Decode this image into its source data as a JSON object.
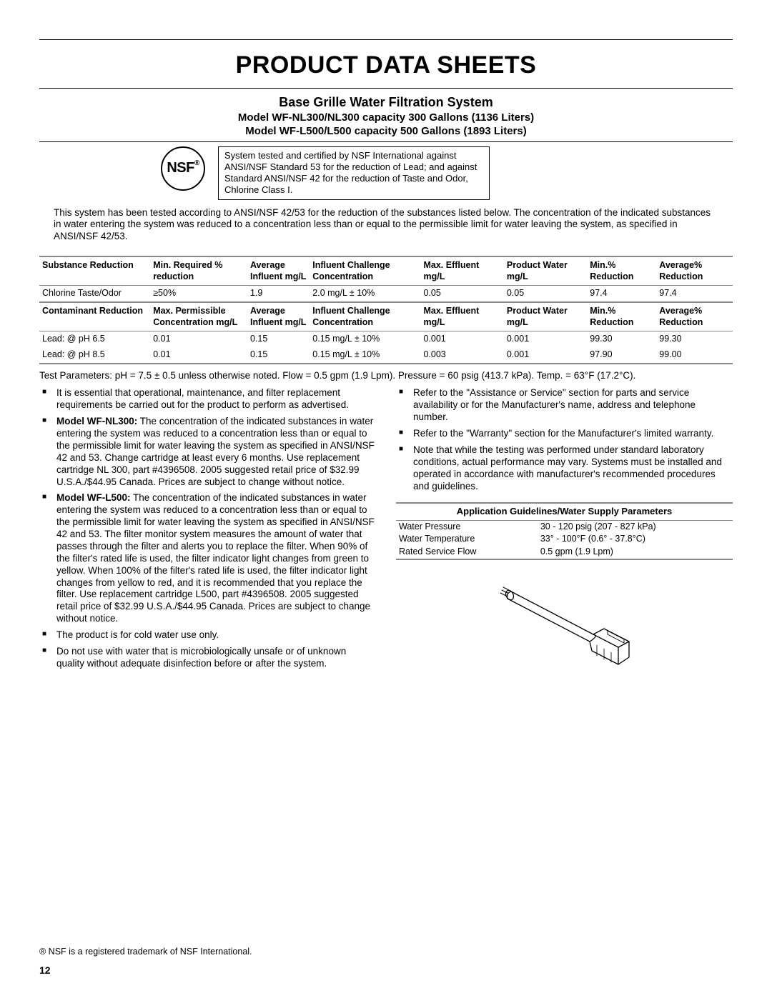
{
  "title": "PRODUCT DATA SHEETS",
  "subtitle": "Base Grille Water Filtration System",
  "model_lines": [
    "Model WF-NL300/NL300 capacity 300 Gallons (1136 Liters)",
    "Model WF-L500/L500 capacity 500 Gallons (1893 Liters)"
  ],
  "nsf_label": "NSF",
  "cert_text": "System tested and certified by NSF International against ANSI/NSF Standard 53 for the reduction of Lead; and against Standard ANSI/NSF 42 for the reduction of Taste and Odor, Chlorine Class I.",
  "intro": "This system has been tested according to ANSI/NSF 42/53 for the reduction of the substances listed below. The concentration of the indicated substances in water entering the system was reduced to a concentration less than or equal to the permissible limit for water leaving the system, as specified in ANSI/NSF 42/53.",
  "table1": {
    "headers": [
      "Substance Reduction",
      "Min. Required % reduction",
      "Average Influent mg/L",
      "Influent Challenge Concentration",
      "Max. Effluent mg/L",
      "Product Water mg/L",
      "Min.% Reduction",
      "Average% Reduction"
    ],
    "rows": [
      [
        "Chlorine Taste/Odor",
        "≥50%",
        "1.9",
        "2.0 mg/L ± 10%",
        "0.05",
        "0.05",
        "97.4",
        "97.4"
      ]
    ]
  },
  "table2": {
    "headers": [
      "Contaminant Reduction",
      "Max. Permissible Concentration mg/L",
      "Average Influent mg/L",
      "Influent Challenge Concentration",
      "Max. Effluent mg/L",
      "Product Water mg/L",
      "Min.% Reduction",
      "Average% Reduction"
    ],
    "rows": [
      [
        "Lead: @ pH 6.5",
        "0.01",
        "0.15",
        "0.15 mg/L ± 10%",
        "0.001",
        "0.001",
        "99.30",
        "99.30"
      ],
      [
        "Lead: @ pH 8.5",
        "0.01",
        "0.15",
        "0.15 mg/L ± 10%",
        "0.003",
        "0.001",
        "97.90",
        "99.00"
      ]
    ]
  },
  "col_widths": [
    "16%",
    "14%",
    "9%",
    "16%",
    "12%",
    "12%",
    "10%",
    "11%"
  ],
  "test_params": "Test Parameters: pH = 7.5 ± 0.5 unless otherwise noted. Flow = 0.5 gpm (1.9 Lpm). Pressure = 60 psig (413.7 kPa). Temp. = 63°F (17.2°C).",
  "left_notes": [
    {
      "bold": "",
      "text": "It is essential that operational, maintenance, and filter replacement requirements be carried out for the product to perform as advertised."
    },
    {
      "bold": "Model WF-NL300:",
      "text": " The concentration of the indicated substances in water entering the system was reduced to a concentration less than or equal to the permissible limit for water leaving the system as specified in ANSI/NSF 42 and 53. Change cartridge at least every 6 months. Use replacement cartridge NL 300, part #4396508. 2005 suggested retail price of $32.99 U.S.A./$44.95 Canada. Prices are subject to change without notice."
    },
    {
      "bold": "Model WF-L500:",
      "text": " The concentration of the indicated substances in water entering the system was reduced to a concentration less than or equal to the permissible limit for water leaving the system as specified in ANSI/NSF 42 and 53. The filter monitor system measures the amount of water that passes through the filter and alerts you to replace the filter. When 90% of the filter's rated life is used, the filter indicator light changes from green to yellow. When 100% of the filter's rated life is used, the filter indicator light changes from yellow to red, and it is recommended that you replace the filter. Use replacement cartridge L500, part #4396508. 2005 suggested retail price of $32.99 U.S.A./$44.95 Canada. Prices are subject to change without notice."
    },
    {
      "bold": "",
      "text": "The product is for cold water use only."
    },
    {
      "bold": "",
      "text": "Do not use with water that is microbiologically unsafe or of unknown quality without adequate disinfection before or after the system."
    }
  ],
  "right_notes": [
    {
      "bold": "",
      "text": "Refer to the \"Assistance or Service\" section for parts and service availability or for the Manufacturer's name, address and telephone number."
    },
    {
      "bold": "",
      "text": "Refer to the \"Warranty\" section for the Manufacturer's limited warranty."
    },
    {
      "bold": "",
      "text": "Note that while the testing was performed under standard laboratory conditions, actual performance may vary. Systems must be installed and operated in accordance with manufacturer's recommended procedures and guidelines."
    }
  ],
  "app_heading": "Application Guidelines/Water Supply Parameters",
  "app_table": [
    [
      "Water Pressure",
      "30 - 120 psig (207 - 827 kPa)"
    ],
    [
      "Water Temperature",
      "33° - 100°F (0.6° - 37.8°C)"
    ],
    [
      "Rated Service Flow",
      "0.5 gpm (1.9 Lpm)"
    ]
  ],
  "trademark": "® NSF is a registered trademark of NSF International.",
  "page": "12"
}
